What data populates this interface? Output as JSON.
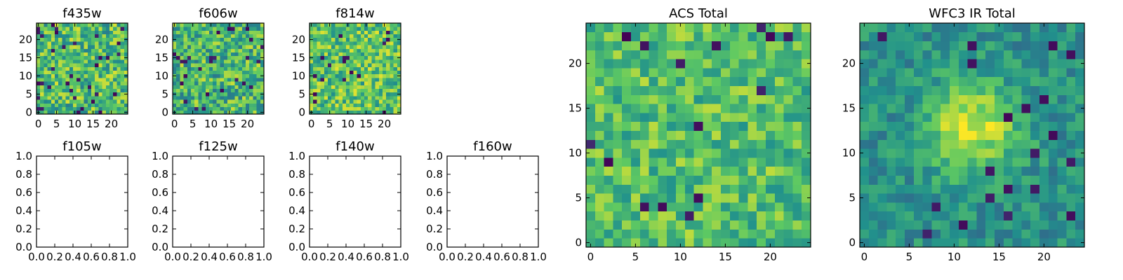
{
  "colormap": "viridis",
  "colors": {
    "viridis_stops": [
      "#440154",
      "#3b528b",
      "#21918c",
      "#5ec962",
      "#fde725"
    ],
    "axes_frame": "#000000",
    "background": "#ffffff"
  },
  "chart_data": [
    {
      "id": "f435w",
      "type": "heatmap",
      "title": "f435w",
      "grid_size": [
        25,
        25
      ],
      "xlim": [
        -0.5,
        24.5
      ],
      "ylim": [
        -0.5,
        24.5
      ],
      "xticks": [
        0,
        5,
        10,
        15,
        20
      ],
      "yticks": [
        0,
        5,
        10,
        15,
        20
      ],
      "xticklabels": [
        "0",
        "5",
        "10",
        "15",
        "20"
      ],
      "yticklabels": [
        "0",
        "5",
        "10",
        "15",
        "20"
      ],
      "value_range": [
        0,
        1
      ],
      "pattern": "noise",
      "seed": 11,
      "mean": 0.68,
      "spread": 0.26,
      "dark_fraction": 0.05
    },
    {
      "id": "f606w",
      "type": "heatmap",
      "title": "f606w",
      "grid_size": [
        25,
        25
      ],
      "xlim": [
        -0.5,
        24.5
      ],
      "ylim": [
        -0.5,
        24.5
      ],
      "xticks": [
        0,
        5,
        10,
        15,
        20
      ],
      "yticks": [
        0,
        5,
        10,
        15,
        20
      ],
      "xticklabels": [
        "0",
        "5",
        "10",
        "15",
        "20"
      ],
      "yticklabels": [
        "0",
        "5",
        "10",
        "15",
        "20"
      ],
      "value_range": [
        0,
        1
      ],
      "pattern": "noise",
      "seed": 23,
      "mean": 0.66,
      "spread": 0.26,
      "dark_fraction": 0.04
    },
    {
      "id": "f814w",
      "type": "heatmap",
      "title": "f814w",
      "grid_size": [
        25,
        25
      ],
      "xlim": [
        -0.5,
        24.5
      ],
      "ylim": [
        -0.5,
        24.5
      ],
      "xticks": [
        0,
        5,
        10,
        15,
        20
      ],
      "yticks": [
        0,
        5,
        10,
        15,
        20
      ],
      "xticklabels": [
        "0",
        "5",
        "10",
        "15",
        "20"
      ],
      "yticklabels": [
        "0",
        "5",
        "10",
        "15",
        "20"
      ],
      "value_range": [
        0,
        1
      ],
      "pattern": "noise",
      "seed": 37,
      "mean": 0.72,
      "spread": 0.24,
      "dark_fraction": 0.03
    },
    {
      "id": "f105w",
      "type": "empty",
      "title": "f105w",
      "xlim": [
        0,
        1
      ],
      "ylim": [
        0,
        1
      ],
      "xticks": [
        0,
        0.2,
        0.4,
        0.6,
        0.8,
        1.0
      ],
      "yticks": [
        0,
        0.2,
        0.4,
        0.6,
        0.8,
        1.0
      ],
      "xticklabels": [
        "0.0",
        "0.2",
        "0.4",
        "0.6",
        "0.8",
        "1.0"
      ],
      "yticklabels": [
        "0.0",
        "0.2",
        "0.4",
        "0.6",
        "0.8",
        "1.0"
      ]
    },
    {
      "id": "f125w",
      "type": "empty",
      "title": "f125w",
      "xlim": [
        0,
        1
      ],
      "ylim": [
        0,
        1
      ],
      "xticks": [
        0,
        0.2,
        0.4,
        0.6,
        0.8,
        1.0
      ],
      "yticks": [
        0,
        0.2,
        0.4,
        0.6,
        0.8,
        1.0
      ],
      "xticklabels": [
        "0.0",
        "0.2",
        "0.4",
        "0.6",
        "0.8",
        "1.0"
      ],
      "yticklabels": [
        "0.0",
        "0.2",
        "0.4",
        "0.6",
        "0.8",
        "1.0"
      ]
    },
    {
      "id": "f140w",
      "type": "empty",
      "title": "f140w",
      "xlim": [
        0,
        1
      ],
      "ylim": [
        0,
        1
      ],
      "xticks": [
        0,
        0.2,
        0.4,
        0.6,
        0.8,
        1.0
      ],
      "yticks": [
        0,
        0.2,
        0.4,
        0.6,
        0.8,
        1.0
      ],
      "xticklabels": [
        "0.0",
        "0.2",
        "0.4",
        "0.6",
        "0.8",
        "1.0"
      ],
      "yticklabels": [
        "0.0",
        "0.2",
        "0.4",
        "0.6",
        "0.8",
        "1.0"
      ]
    },
    {
      "id": "f160w",
      "type": "empty",
      "title": "f160w",
      "xlim": [
        0,
        1
      ],
      "ylim": [
        0,
        1
      ],
      "xticks": [
        0,
        0.2,
        0.4,
        0.6,
        0.8,
        1.0
      ],
      "yticks": [
        0,
        0.2,
        0.4,
        0.6,
        0.8,
        1.0
      ],
      "xticklabels": [
        "0.0",
        "0.2",
        "0.4",
        "0.6",
        "0.8",
        "1.0"
      ],
      "yticklabels": [
        "0.0",
        "0.2",
        "0.4",
        "0.6",
        "0.8",
        "1.0"
      ]
    },
    {
      "id": "acs-total",
      "type": "heatmap",
      "title": "ACS Total",
      "grid_size": [
        25,
        25
      ],
      "xlim": [
        -0.5,
        24.5
      ],
      "ylim": [
        -0.5,
        24.5
      ],
      "xticks": [
        0,
        5,
        10,
        15,
        20
      ],
      "yticks": [
        0,
        5,
        10,
        15,
        20
      ],
      "xticklabels": [
        "0",
        "5",
        "10",
        "15",
        "20"
      ],
      "yticklabels": [
        "0",
        "5",
        "10",
        "15",
        "20"
      ],
      "value_range": [
        0,
        1
      ],
      "pattern": "noise",
      "seed": 53,
      "mean": 0.7,
      "spread": 0.2,
      "dark_fraction": 0.025
    },
    {
      "id": "wfc3-ir-total",
      "type": "heatmap",
      "title": "WFC3 IR Total",
      "grid_size": [
        25,
        25
      ],
      "xlim": [
        -0.5,
        24.5
      ],
      "ylim": [
        -0.5,
        24.5
      ],
      "xticks": [
        0,
        5,
        10,
        15,
        20
      ],
      "yticks": [
        0,
        5,
        10,
        15,
        20
      ],
      "xticklabels": [
        "0",
        "5",
        "10",
        "15",
        "20"
      ],
      "yticklabels": [
        "0",
        "5",
        "10",
        "15",
        "20"
      ],
      "value_range": [
        0,
        1
      ],
      "pattern": "blob",
      "seed": 71,
      "mean": 0.5,
      "spread": 0.14,
      "dark_fraction": 0.03,
      "peak_center": [
        12,
        13
      ],
      "peak_amplitude": 0.45,
      "peak_width": 3.5
    }
  ]
}
